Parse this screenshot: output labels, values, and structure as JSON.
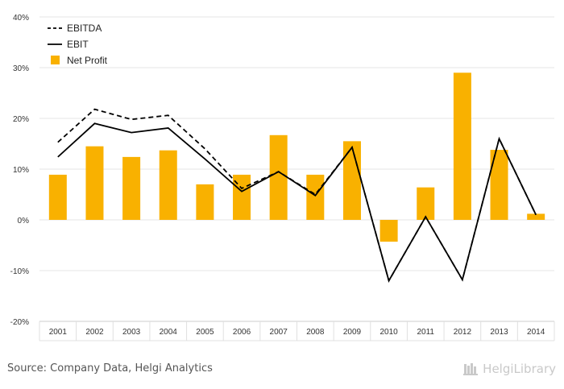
{
  "chart_data": {
    "type": "bar",
    "categories": [
      "2001",
      "2002",
      "2003",
      "2004",
      "2005",
      "2006",
      "2007",
      "2008",
      "2009",
      "2010",
      "2011",
      "2012",
      "2013",
      "2014"
    ],
    "series": [
      {
        "name": "EBITDA",
        "kind": "line",
        "style": "dashed",
        "color": "#000000",
        "values": [
          15.3,
          21.8,
          19.8,
          20.6,
          14.0,
          6.2,
          9.5,
          5.0,
          14.3,
          -12.0,
          0.6,
          -11.8,
          16.0,
          1.0
        ]
      },
      {
        "name": "EBIT",
        "kind": "line",
        "style": "solid",
        "color": "#000000",
        "values": [
          12.4,
          19.0,
          17.2,
          18.1,
          12.0,
          5.6,
          9.5,
          4.8,
          14.3,
          -12.0,
          0.6,
          -11.8,
          16.0,
          1.0
        ]
      },
      {
        "name": "Net Profit",
        "kind": "bar",
        "color": "#f9b100",
        "values": [
          8.9,
          14.5,
          12.4,
          13.7,
          7.0,
          8.9,
          16.7,
          8.9,
          15.5,
          -4.3,
          6.4,
          29.0,
          13.8,
          1.2
        ]
      }
    ],
    "yticks": [
      "40%",
      "30%",
      "20%",
      "10%",
      "0%",
      "-10%",
      "-20%"
    ],
    "ylim": [
      -20,
      40
    ],
    "ytick_values": [
      40,
      30,
      20,
      10,
      0,
      -10,
      -20
    ],
    "grid": true,
    "legend_position": "top-left"
  },
  "footer": {
    "source": "Source: Company Data, Helgi Analytics",
    "logo_text": "HelgiLibrary"
  }
}
